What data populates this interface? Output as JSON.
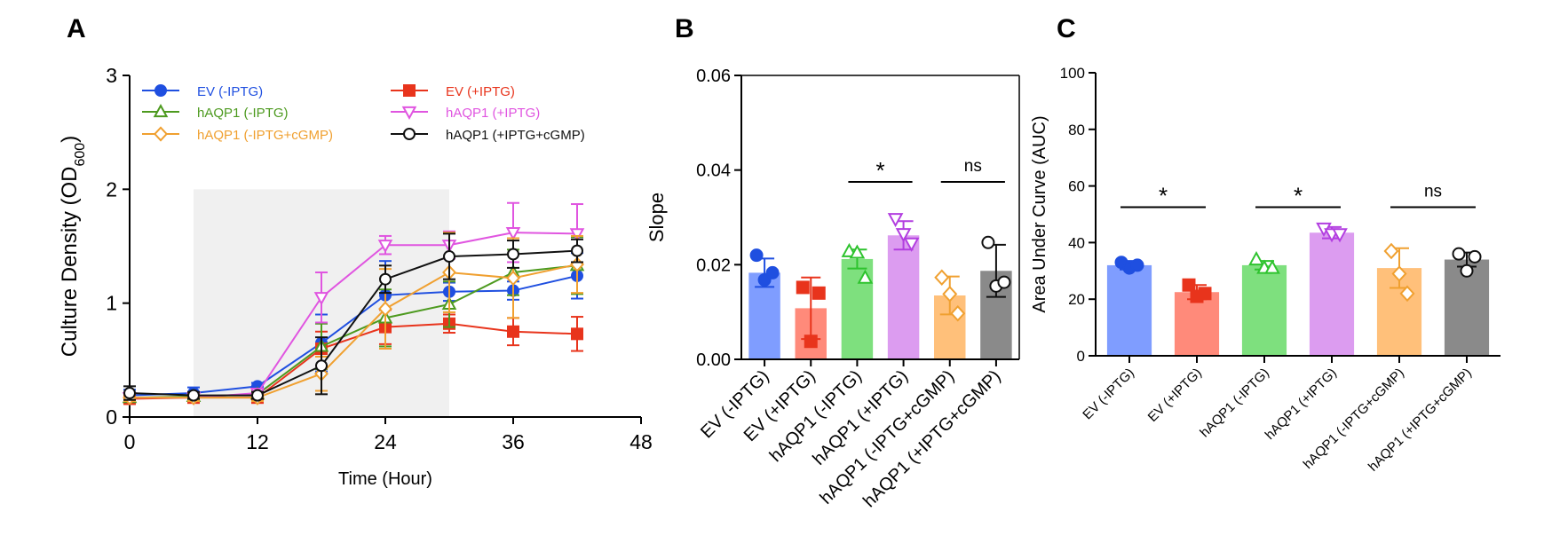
{
  "colors": {
    "EV (-IPTG)": "#1f4fe0",
    "EV (+IPTG)": "#e8341c",
    "hAQP1 (-IPTG)": "#4d9a1f",
    "hAQP1 (+IPTG)": "#e055e0",
    "hAQP1 (-IPTG+cGMP)": "#f0a030",
    "hAQP1 (+IPTG+cGMP)": "#111111",
    "shade": "#f0f0f0"
  },
  "bar_fills": [
    "#7f9dff",
    "#ff8a7a",
    "#7ee07e",
    "#dc9cf0",
    "#ffc07a",
    "#8a8a8a"
  ],
  "bar_points": [
    "#1f4fe0",
    "#e8341c",
    "#2ec32e",
    "#b23ee0",
    "#f0a030",
    "#111111"
  ],
  "markers": [
    "circle",
    "square",
    "triangle-up",
    "triangle-down",
    "diamond",
    "circle-open"
  ],
  "chart_data": [
    {
      "panel": "A",
      "type": "line",
      "xlabel": "Time (Hour)",
      "ylabel": "Culture Density (OD",
      "ylabel_sub": "600",
      "ylabel_end": ")",
      "xlim": [
        0,
        48
      ],
      "ylim": [
        0,
        3
      ],
      "xticks": [
        "0",
        "12",
        "24",
        "36",
        "48"
      ],
      "yticks": [
        "0",
        "1",
        "2",
        "3"
      ],
      "shaded_x": [
        6,
        30
      ],
      "legend_position": "top",
      "x": [
        0,
        6,
        12,
        18,
        24,
        30,
        36,
        42
      ],
      "series": [
        {
          "name": "EV (-IPTG)",
          "values": [
            0.19,
            0.21,
            0.27,
            0.65,
            1.07,
            1.1,
            1.11,
            1.24
          ],
          "err": [
            0.05,
            0.05,
            0.03,
            0.25,
            0.3,
            0.08,
            0.08,
            0.2
          ]
        },
        {
          "name": "EV (+IPTG)",
          "values": [
            0.16,
            0.17,
            0.17,
            0.6,
            0.79,
            0.82,
            0.75,
            0.73
          ],
          "err": [
            0.03,
            0.03,
            0.03,
            0.15,
            0.15,
            0.08,
            0.12,
            0.15
          ]
        },
        {
          "name": "hAQP1 (-IPTG)",
          "values": [
            0.17,
            0.18,
            0.2,
            0.62,
            0.87,
            0.99,
            1.27,
            1.33
          ],
          "err": [
            0.03,
            0.03,
            0.03,
            0.2,
            0.25,
            0.2,
            0.2,
            0.25
          ]
        },
        {
          "name": "hAQP1 (+IPTG)",
          "values": [
            0.17,
            0.17,
            0.21,
            1.05,
            1.51,
            1.51,
            1.62,
            1.61
          ],
          "err": [
            0.03,
            0.03,
            0.03,
            0.22,
            0.08,
            0.12,
            0.26,
            0.26
          ]
        },
        {
          "name": "hAQP1 (-IPTG+cGMP)",
          "values": [
            0.17,
            0.17,
            0.17,
            0.38,
            0.95,
            1.27,
            1.22,
            1.34
          ],
          "err": [
            0.03,
            0.03,
            0.03,
            0.15,
            0.35,
            0.35,
            0.35,
            0.25
          ]
        },
        {
          "name": "hAQP1 (+IPTG+cGMP)",
          "values": [
            0.21,
            0.19,
            0.19,
            0.45,
            1.21,
            1.41,
            1.43,
            1.46
          ],
          "err": [
            0.06,
            0.03,
            0.03,
            0.25,
            0.12,
            0.2,
            0.12,
            0.1
          ]
        }
      ]
    },
    {
      "panel": "B",
      "type": "bar",
      "ylabel": "Slope",
      "ylim": [
        0,
        0.06
      ],
      "yticks": [
        "0.00",
        "0.02",
        "0.04",
        "0.06"
      ],
      "categories": [
        "EV (-IPTG)",
        "EV (+IPTG)",
        "hAQP1 (-IPTG)",
        "hAQP1 (+IPTG)",
        "hAQP1 (-IPTG+cGMP)",
        "hAQP1 (+IPTG+cGMP)"
      ],
      "values": [
        0.0183,
        0.0108,
        0.0212,
        0.0262,
        0.0135,
        0.0187
      ],
      "err": [
        0.003,
        0.0065,
        0.002,
        0.003,
        0.004,
        0.0055
      ],
      "points": [
        [
          0.022,
          0.0168,
          0.0183
        ],
        [
          0.0152,
          0.0038,
          0.014
        ],
        [
          0.0228,
          0.0225,
          0.0172
        ],
        [
          0.0297,
          0.0265,
          0.0245
        ],
        [
          0.0173,
          0.0138,
          0.0097
        ],
        [
          0.0247,
          0.0155,
          0.0163
        ]
      ],
      "annotations": [
        {
          "text": "*",
          "from": 2,
          "to": 3,
          "y": 0.0375
        },
        {
          "text": "ns",
          "from": 4,
          "to": 5,
          "y": 0.0375
        }
      ]
    },
    {
      "panel": "C",
      "type": "bar",
      "ylabel": "Area Under Curve (AUC)",
      "ylim": [
        0,
        100
      ],
      "yticks": [
        "0",
        "20",
        "40",
        "60",
        "80",
        "100"
      ],
      "categories": [
        "EV (-IPTG)",
        "EV (+IPTG)",
        "hAQP1 (-IPTG)",
        "hAQP1 (+IPTG)",
        "hAQP1 (-IPTG+cGMP)",
        "hAQP1 (+IPTG+cGMP)"
      ],
      "values": [
        32,
        22.5,
        32,
        43.5,
        31,
        34
      ],
      "err": [
        1.5,
        2.5,
        1.5,
        2,
        7,
        2.5
      ],
      "points": [
        [
          33,
          31,
          32
        ],
        [
          25,
          21,
          22
        ],
        [
          34,
          31,
          31
        ],
        [
          45,
          43,
          43
        ],
        [
          37,
          29,
          22
        ],
        [
          36,
          30,
          35
        ]
      ],
      "annotations": [
        {
          "text": "*",
          "from": 0,
          "to": 1,
          "y": 52.5
        },
        {
          "text": "*",
          "from": 2,
          "to": 3,
          "y": 52.5
        },
        {
          "text": "ns",
          "from": 4,
          "to": 5,
          "y": 52.5
        }
      ]
    }
  ]
}
